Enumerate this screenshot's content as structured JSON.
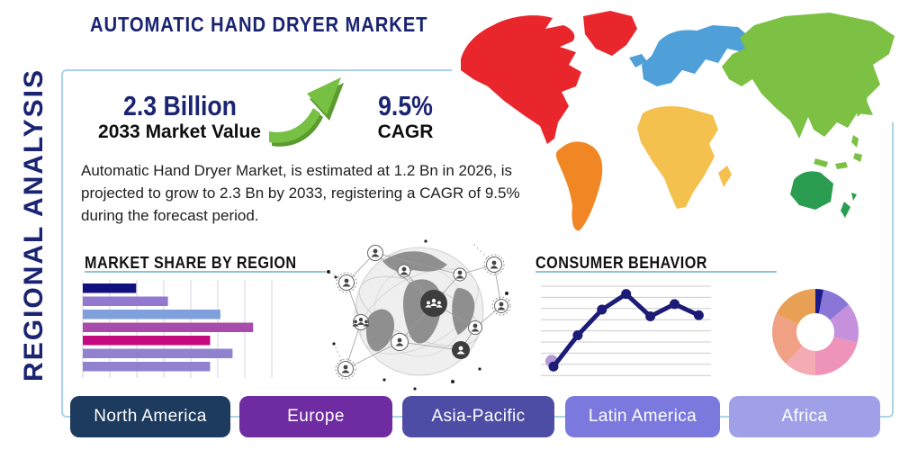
{
  "title": "AUTOMATIC HAND DRYER MARKET",
  "side_label": "REGIONAL ANALYSIS",
  "stats": {
    "value": "2.3 Billion",
    "value_caption": "2033 Market Value",
    "cagr": "9.5%",
    "cagr_caption": "CAGR"
  },
  "description": "Automatic Hand Dryer Market, is estimated at 1.2 Bn in 2026, is\nprojected to grow to 2.3 Bn by 2033, registering a CAGR of 9.5%\nduring the forecast period.",
  "sections": {
    "market_share": "MARKET SHARE BY REGION",
    "consumer_behavior": "CONSUMER BEHAVIOR"
  },
  "regions": [
    {
      "label": "North America",
      "color": "#1d3a5f"
    },
    {
      "label": "Europe",
      "color": "#6e2ba2"
    },
    {
      "label": "Asia-Pacific",
      "color": "#4d4da6"
    },
    {
      "label": "Latin America",
      "color": "#7b79de"
    },
    {
      "label": "Africa",
      "color": "#a0a0e8"
    }
  ],
  "map": {
    "continents": [
      {
        "name": "North America",
        "color": "#e8262b"
      },
      {
        "name": "South America",
        "color": "#f08724"
      },
      {
        "name": "Europe",
        "color": "#4f9fd9"
      },
      {
        "name": "Africa",
        "color": "#f4c04e"
      },
      {
        "name": "Asia",
        "color": "#7cc143"
      },
      {
        "name": "Oceania",
        "color": "#2a9d50"
      }
    ]
  },
  "colors": {
    "navy_text": "#1a2472",
    "panel_border": "#a9d5e7",
    "section_underline": "#8cc3dc",
    "green_arrow": "#76c043",
    "green_arrow_shadow": "#5a9a2e"
  },
  "chart_data": [
    {
      "type": "bar",
      "orientation": "horizontal",
      "title": "MARKET SHARE BY REGION",
      "values": [
        28.5,
        45.5,
        73.5,
        91,
        68,
        80,
        68
      ],
      "xlim": [
        0,
        100
      ],
      "grid": true,
      "note": "bars unlabeled in source image",
      "bar_colors": [
        "#10107e",
        "#9279cf",
        "#7f9fdd",
        "#a84cab",
        "#c4087e",
        "#9181ce",
        "#9181ce"
      ]
    },
    {
      "type": "line",
      "title": "CONSUMER BEHAVIOR",
      "x": [
        1,
        2,
        3,
        4,
        5,
        6,
        7
      ],
      "values": [
        0.8,
        3.6,
        5.9,
        7.3,
        5.3,
        6.4,
        5.4
      ],
      "ylim": [
        0,
        8
      ],
      "grid": true,
      "line_color": "#1c1c78",
      "first_point_highlight_color": "#b49bd8"
    },
    {
      "type": "pie",
      "donut": true,
      "slices": [
        {
          "color": "#1a1a8e",
          "value": 3
        },
        {
          "color": "#8a76d6",
          "value": 11
        },
        {
          "color": "#c591dd",
          "value": 15
        },
        {
          "color": "#ee93ba",
          "value": 21
        },
        {
          "color": "#f4abb4",
          "value": 12
        },
        {
          "color": "#f0a083",
          "value": 20
        },
        {
          "color": "#e8a055",
          "value": 18
        }
      ]
    }
  ]
}
